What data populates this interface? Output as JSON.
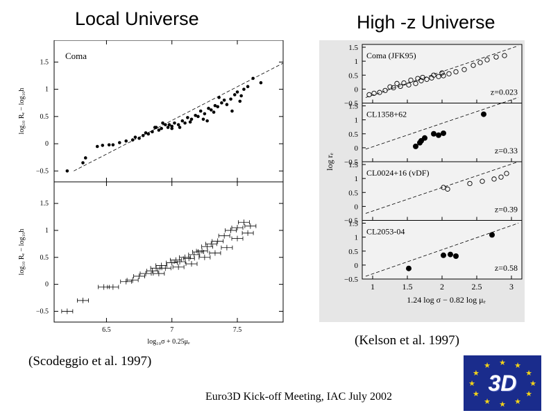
{
  "headings": {
    "left": "Local Universe",
    "right": "High -z Universe"
  },
  "citations": {
    "left": "(Scodeggio et al. 1997)",
    "right": "(Kelson et al. 1997)"
  },
  "footer": "Euro3D Kick-off Meeting, IAC July 2002",
  "logo": {
    "text": "3D",
    "star_color": "#f2d21a",
    "bg_color": "#1a2c8c"
  },
  "chart_data": [
    {
      "type": "scatter",
      "panel": "left-top",
      "label": "Coma",
      "ylabel": "log₁₀ Rₑ − log₁₀h",
      "xlim": [
        6.1,
        7.85
      ],
      "ylim": [
        -0.7,
        1.9
      ],
      "yticks": [
        "1.5",
        "1",
        "0.5",
        "0",
        "−0.5"
      ],
      "ytick_values": [
        1.5,
        1,
        0.5,
        0,
        -0.5
      ],
      "fit_line": {
        "x": [
          6.25,
          7.85
        ],
        "y": [
          -0.5,
          1.48
        ]
      },
      "points": [
        [
          6.2,
          -0.5
        ],
        [
          6.32,
          -0.35
        ],
        [
          6.34,
          -0.26
        ],
        [
          6.43,
          -0.05
        ],
        [
          6.47,
          -0.03
        ],
        [
          6.52,
          -0.02
        ],
        [
          6.55,
          -0.02
        ],
        [
          6.6,
          0.02
        ],
        [
          6.65,
          0.05
        ],
        [
          6.7,
          0.07
        ],
        [
          6.72,
          0.12
        ],
        [
          6.75,
          0.1
        ],
        [
          6.78,
          0.15
        ],
        [
          6.8,
          0.2
        ],
        [
          6.82,
          0.18
        ],
        [
          6.85,
          0.22
        ],
        [
          6.87,
          0.3
        ],
        [
          6.9,
          0.25
        ],
        [
          6.92,
          0.28
        ],
        [
          6.95,
          0.35
        ],
        [
          6.97,
          0.3
        ],
        [
          7.0,
          0.32
        ],
        [
          7.02,
          0.38
        ],
        [
          7.05,
          0.35
        ],
        [
          7.08,
          0.42
        ],
        [
          7.1,
          0.38
        ],
        [
          7.12,
          0.48
        ],
        [
          7.15,
          0.45
        ],
        [
          7.18,
          0.52
        ],
        [
          7.2,
          0.5
        ],
        [
          7.22,
          0.6
        ],
        [
          7.25,
          0.55
        ],
        [
          7.28,
          0.65
        ],
        [
          7.3,
          0.62
        ],
        [
          7.33,
          0.7
        ],
        [
          7.35,
          0.68
        ],
        [
          7.38,
          0.75
        ],
        [
          7.4,
          0.8
        ],
        [
          7.45,
          0.82
        ],
        [
          7.48,
          0.9
        ],
        [
          7.5,
          0.95
        ],
        [
          7.53,
          0.88
        ],
        [
          7.55,
          1.0
        ],
        [
          7.58,
          1.05
        ],
        [
          7.62,
          1.2
        ],
        [
          7.68,
          1.12
        ],
        [
          7.0,
          0.28
        ],
        [
          6.98,
          0.35
        ],
        [
          7.06,
          0.3
        ],
        [
          7.14,
          0.4
        ],
        [
          7.24,
          0.45
        ],
        [
          7.32,
          0.58
        ],
        [
          7.42,
          0.72
        ],
        [
          7.46,
          0.6
        ],
        [
          7.52,
          0.78
        ],
        [
          7.36,
          0.85
        ],
        [
          6.88,
          0.3
        ],
        [
          6.93,
          0.38
        ],
        [
          7.27,
          0.42
        ]
      ]
    },
    {
      "type": "scatter",
      "panel": "left-bottom",
      "ylabel": "log₁₀ Rₑ − log₁₀h",
      "xlabel": "log₁₀σ + 0.25μₑ",
      "xlim": [
        6.1,
        7.85
      ],
      "ylim": [
        -0.7,
        1.9
      ],
      "yticks": [
        "1.5",
        "1",
        "0.5",
        "0",
        "−0.5"
      ],
      "ytick_values": [
        1.5,
        1,
        0.5,
        0,
        -0.5
      ],
      "xticks": [
        "6.5",
        "7",
        "7.5"
      ],
      "xtick_values": [
        6.5,
        7,
        7.5
      ],
      "points_with_errorbars": [
        [
          6.2,
          -0.5
        ],
        [
          6.32,
          -0.3
        ],
        [
          6.48,
          -0.05
        ],
        [
          6.55,
          -0.05
        ],
        [
          6.65,
          0.05
        ],
        [
          6.7,
          0.08
        ],
        [
          6.75,
          0.15
        ],
        [
          6.8,
          0.2
        ],
        [
          6.85,
          0.25
        ],
        [
          6.88,
          0.3
        ],
        [
          6.92,
          0.35
        ],
        [
          6.95,
          0.3
        ],
        [
          7.0,
          0.4
        ],
        [
          7.03,
          0.45
        ],
        [
          7.06,
          0.42
        ],
        [
          7.1,
          0.5
        ],
        [
          7.13,
          0.48
        ],
        [
          7.17,
          0.55
        ],
        [
          7.2,
          0.6
        ],
        [
          7.23,
          0.62
        ],
        [
          7.27,
          0.7
        ],
        [
          7.3,
          0.75
        ],
        [
          7.35,
          0.8
        ],
        [
          7.4,
          0.9
        ],
        [
          7.45,
          1.0
        ],
        [
          7.5,
          1.05
        ],
        [
          7.55,
          1.15
        ],
        [
          7.6,
          1.08
        ],
        [
          6.9,
          0.2
        ],
        [
          7.05,
          0.32
        ],
        [
          7.15,
          0.38
        ],
        [
          7.25,
          0.5
        ],
        [
          7.33,
          0.58
        ],
        [
          7.42,
          0.68
        ],
        [
          7.5,
          0.85
        ],
        [
          7.58,
          0.95
        ]
      ]
    },
    {
      "type": "scatter",
      "panel": "right",
      "ylabel": "log rₑ",
      "xlabel": "1.24 log σ − 0.82 log μₑ",
      "xlim": [
        0.85,
        3.15
      ],
      "xticks": [
        "1",
        "1.5",
        "2",
        "2.5",
        "3"
      ],
      "xtick_values": [
        1,
        1.5,
        2,
        2.5,
        3
      ],
      "subpanels": [
        {
          "label": "Coma (JFK95)",
          "z_label": "z=0.023",
          "marker": "open",
          "yticks": [
            "1.5",
            "1",
            "0.5",
            "0",
            "−0.5"
          ],
          "ytick_values": [
            1.5,
            1,
            0.5,
            0,
            -0.5
          ],
          "fit_line": {
            "x": [
              0.9,
              3.1
            ],
            "y": [
              -0.3,
              1.55
            ]
          },
          "points": [
            [
              0.95,
              -0.2
            ],
            [
              1.02,
              -0.15
            ],
            [
              1.1,
              -0.12
            ],
            [
              1.18,
              -0.05
            ],
            [
              1.3,
              0.05
            ],
            [
              1.4,
              0.1
            ],
            [
              1.52,
              0.15
            ],
            [
              1.62,
              0.2
            ],
            [
              1.7,
              0.3
            ],
            [
              1.78,
              0.35
            ],
            [
              1.85,
              0.4
            ],
            [
              1.95,
              0.45
            ],
            [
              2.02,
              0.48
            ],
            [
              2.1,
              0.55
            ],
            [
              2.2,
              0.62
            ],
            [
              2.32,
              0.7
            ],
            [
              2.45,
              0.85
            ],
            [
              2.55,
              0.95
            ],
            [
              2.65,
              1.05
            ],
            [
              2.78,
              1.15
            ],
            [
              2.9,
              1.2
            ],
            [
              1.35,
              0.2
            ],
            [
              1.55,
              0.32
            ],
            [
              1.72,
              0.42
            ],
            [
              1.88,
              0.5
            ],
            [
              2.0,
              0.58
            ],
            [
              1.65,
              0.38
            ],
            [
              1.45,
              0.22
            ],
            [
              1.25,
              0.08
            ]
          ]
        },
        {
          "label": "CL1358+62",
          "z_label": "z=0.33",
          "marker": "filled",
          "yticks": [
            "1.5",
            "1",
            "0.5",
            "0",
            "−0.5"
          ],
          "ytick_values": [
            1.5,
            1,
            0.5,
            0,
            -0.5
          ],
          "fit_line": {
            "x": [
              0.9,
              3.1
            ],
            "y": [
              -0.05,
              1.8
            ]
          },
          "points": [
            [
              1.62,
              0.05
            ],
            [
              1.68,
              0.18
            ],
            [
              1.75,
              0.35
            ],
            [
              1.88,
              0.5
            ],
            [
              1.95,
              0.45
            ],
            [
              2.02,
              0.52
            ],
            [
              2.6,
              1.2
            ],
            [
              1.7,
              0.25
            ]
          ]
        },
        {
          "label": "CL0024+16 (vDF)",
          "z_label": "z=0.39",
          "marker": "open",
          "yticks": [
            "1.5",
            "1",
            "0.5",
            "0",
            "−0.5"
          ],
          "ytick_values": [
            1.5,
            1,
            0.5,
            0,
            -0.5
          ],
          "fit_line": {
            "x": [
              0.9,
              3.1
            ],
            "y": [
              -0.25,
              1.6
            ]
          },
          "points": [
            [
              2.02,
              0.68
            ],
            [
              2.08,
              0.62
            ],
            [
              2.4,
              0.82
            ],
            [
              2.58,
              0.9
            ],
            [
              2.75,
              0.98
            ],
            [
              2.85,
              1.05
            ],
            [
              2.93,
              1.18
            ]
          ]
        },
        {
          "label": "CL2053-04",
          "z_label": "z=0.58",
          "marker": "filled",
          "yticks": [
            "1.5",
            "1",
            "0.5",
            "0",
            "−0.5"
          ],
          "ytick_values": [
            1.5,
            1,
            0.5,
            0,
            -0.5
          ],
          "fit_line": {
            "x": [
              0.9,
              3.1
            ],
            "y": [
              -0.4,
              1.5
            ]
          },
          "points": [
            [
              1.52,
              -0.12
            ],
            [
              2.02,
              0.35
            ],
            [
              2.12,
              0.38
            ],
            [
              2.2,
              0.32
            ],
            [
              2.72,
              1.08
            ]
          ]
        }
      ]
    }
  ]
}
